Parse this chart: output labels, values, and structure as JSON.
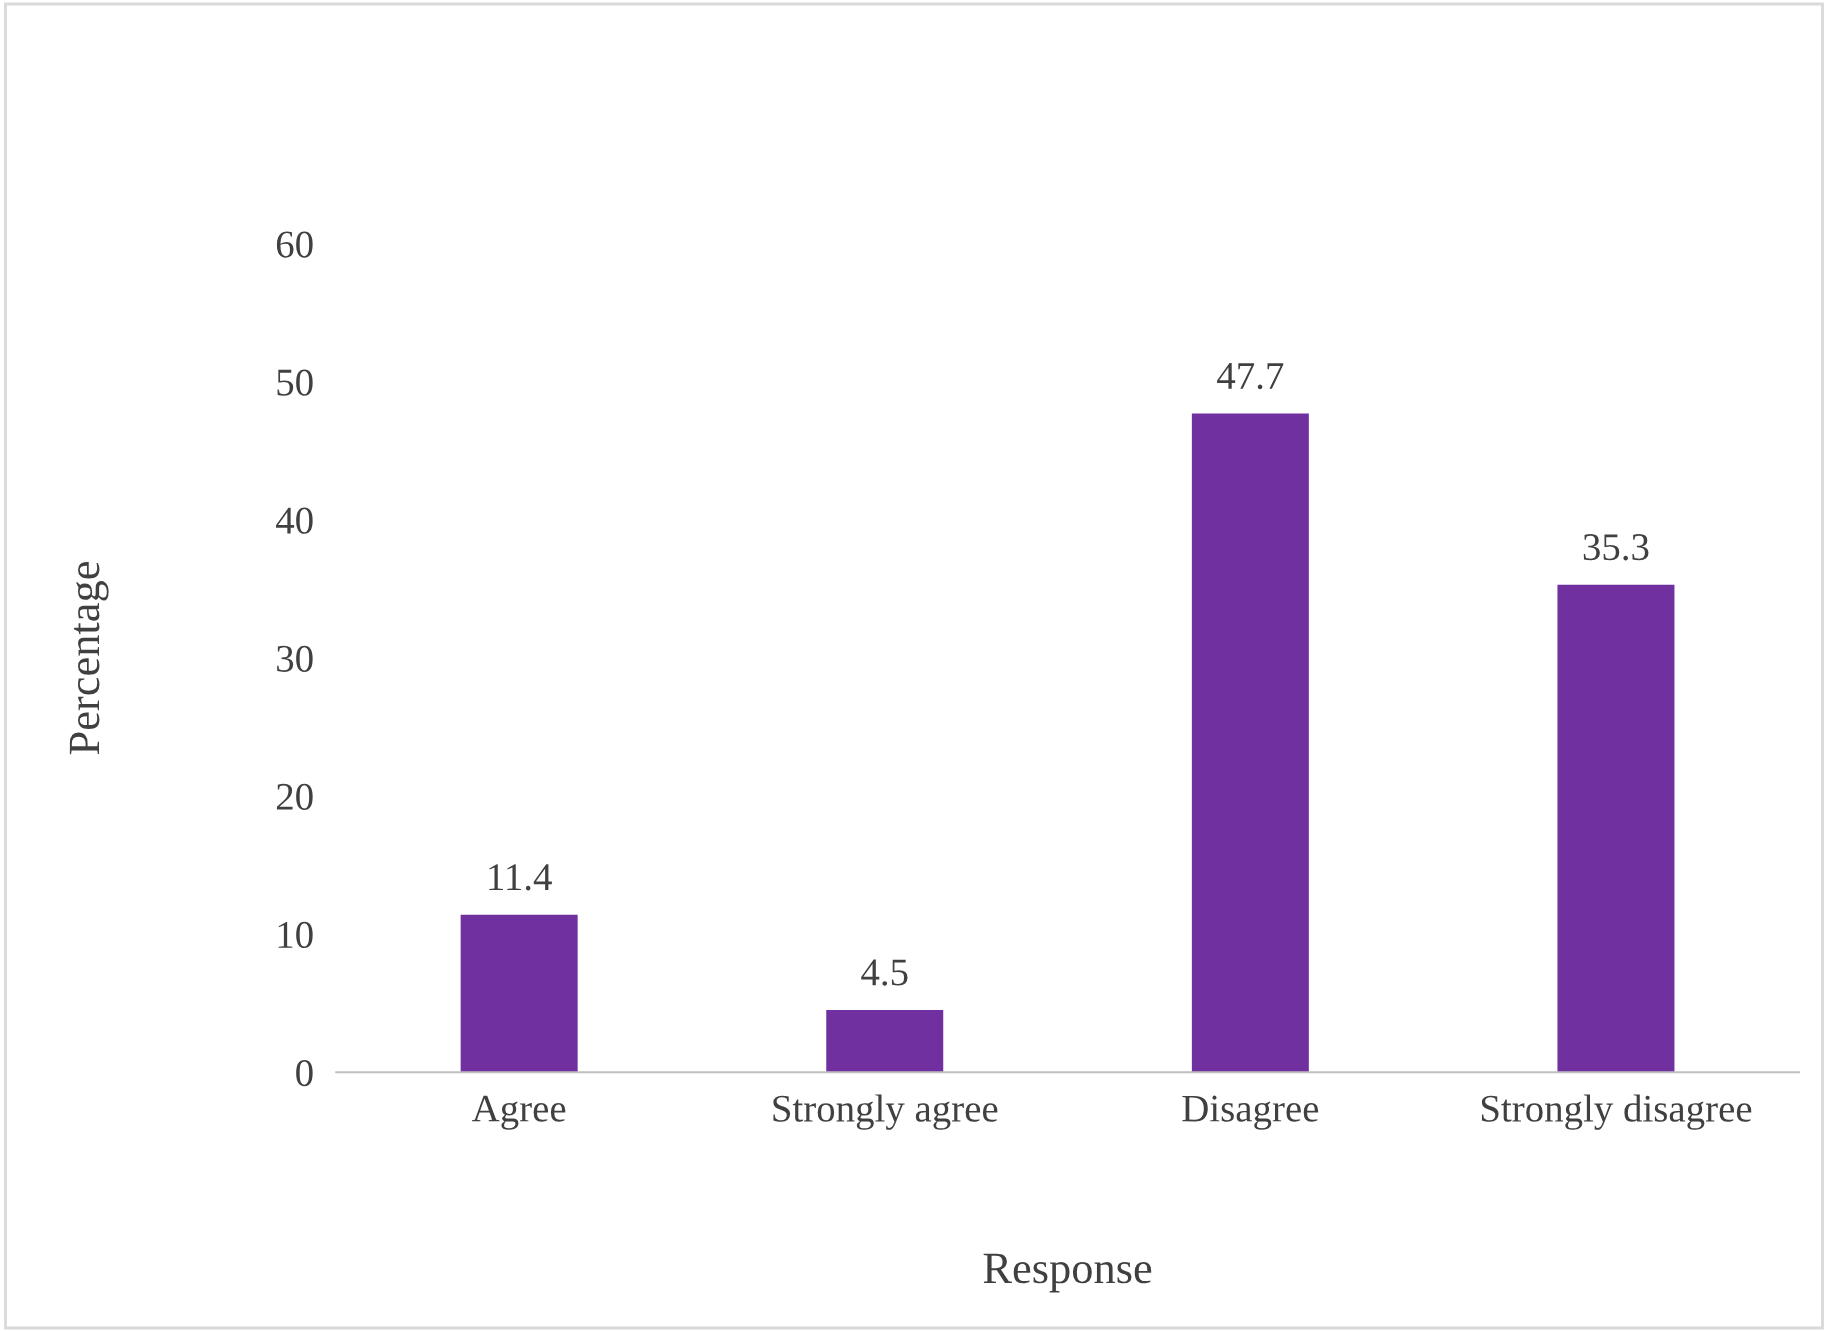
{
  "chart_data": {
    "type": "bar",
    "xlabel": "Response",
    "ylabel": "Percentage",
    "categories": [
      "Agree",
      "Strongly agree",
      "Disagree",
      "Strongly disagree"
    ],
    "values": [
      11.4,
      4.5,
      47.7,
      35.3
    ],
    "color": "#7030a0",
    "ylim": [
      0,
      60
    ],
    "yticks": [
      0,
      10,
      20,
      30,
      40,
      50,
      60
    ],
    "grid": false,
    "data_labels": true
  }
}
